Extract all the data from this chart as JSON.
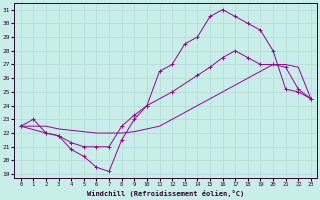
{
  "xlabel": "Windchill (Refroidissement éolien,°C)",
  "bg_color": "#c8eee8",
  "line_color": "#990099",
  "grid_color": "#b8ddd8",
  "xlim": [
    -0.5,
    23.5
  ],
  "ylim": [
    18.7,
    31.5
  ],
  "xticks": [
    0,
    1,
    2,
    3,
    4,
    5,
    6,
    7,
    8,
    9,
    10,
    11,
    12,
    13,
    14,
    15,
    16,
    17,
    18,
    19,
    20,
    21,
    22,
    23
  ],
  "yticks": [
    19,
    20,
    21,
    22,
    23,
    24,
    25,
    26,
    27,
    28,
    29,
    30,
    31
  ],
  "series1_x": [
    0,
    1,
    2,
    3,
    4,
    5,
    6,
    7,
    8,
    9,
    10,
    11,
    12,
    13,
    14,
    15,
    16,
    17,
    18,
    19,
    20,
    21,
    22,
    23
  ],
  "series1_y": [
    22.5,
    23.0,
    22.0,
    21.8,
    20.8,
    20.3,
    19.5,
    19.2,
    21.5,
    23.0,
    24.0,
    26.5,
    27.0,
    28.5,
    29.0,
    30.5,
    31.0,
    30.5,
    30.0,
    29.5,
    28.0,
    25.2,
    25.0,
    24.5
  ],
  "series2_x": [
    0,
    2,
    3,
    4,
    5,
    6,
    7,
    8,
    9,
    10,
    12,
    14,
    15,
    16,
    17,
    18,
    19,
    20,
    21,
    22,
    23
  ],
  "series2_y": [
    22.5,
    22.0,
    21.8,
    21.3,
    21.0,
    21.0,
    21.0,
    22.5,
    23.3,
    24.0,
    25.0,
    26.2,
    26.8,
    27.5,
    28.0,
    27.5,
    27.0,
    27.0,
    26.8,
    25.2,
    24.5
  ],
  "series3_x": [
    0,
    1,
    2,
    3,
    4,
    5,
    6,
    7,
    8,
    9,
    10,
    11,
    12,
    13,
    14,
    15,
    16,
    17,
    18,
    19,
    20,
    21,
    22,
    23
  ],
  "series3_y": [
    22.5,
    22.5,
    22.5,
    22.3,
    22.2,
    22.1,
    22.0,
    22.0,
    22.0,
    22.1,
    22.3,
    22.5,
    23.0,
    23.5,
    24.0,
    24.5,
    25.0,
    25.5,
    26.0,
    26.5,
    27.0,
    27.0,
    26.8,
    24.5
  ]
}
